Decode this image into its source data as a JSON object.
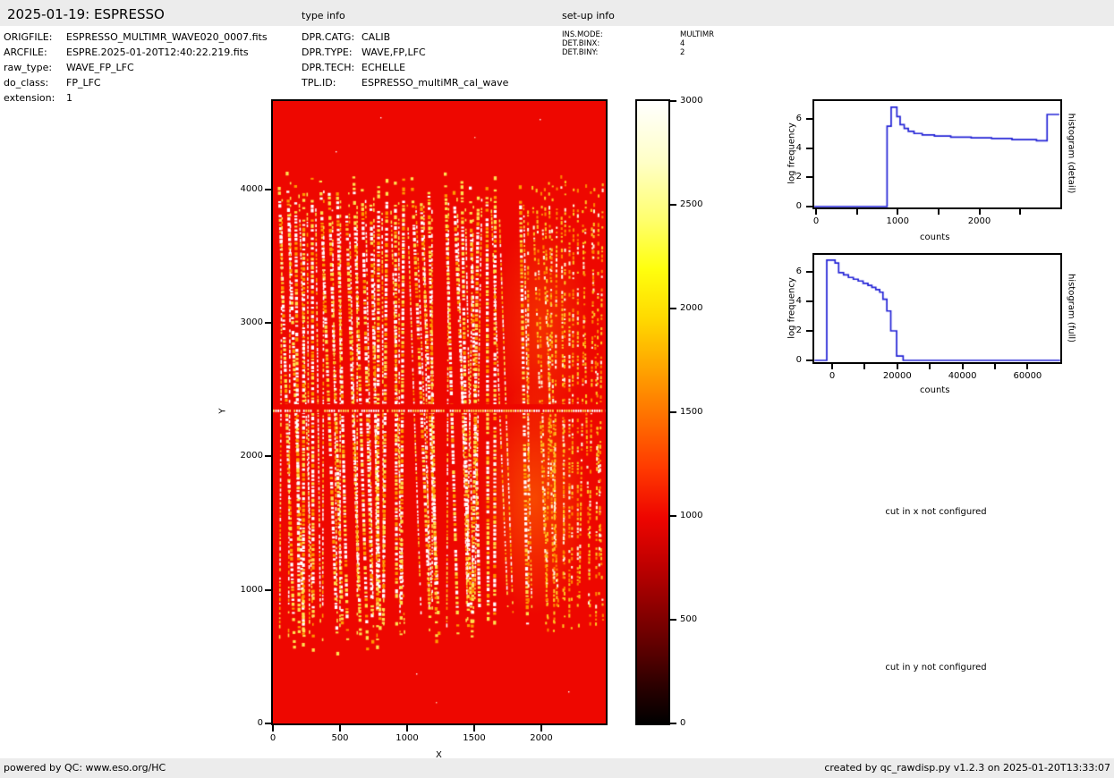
{
  "header": {
    "title": "2025-01-19: ESPRESSO",
    "type_info_label": "type info",
    "setup_info_label": "set-up info"
  },
  "metadata": {
    "rows": [
      {
        "label": "ORIGFILE:",
        "value": "ESPRESSO_MULTIMR_WAVE020_0007.fits"
      },
      {
        "label": "ARCFILE:",
        "value": "ESPRE.2025-01-20T12:40:22.219.fits"
      },
      {
        "label": "raw_type:",
        "value": "WAVE_FP_LFC"
      },
      {
        "label": "do_class:",
        "value": "FP_LFC"
      },
      {
        "label": "extension:",
        "value": "1"
      }
    ]
  },
  "type_info": {
    "rows": [
      {
        "label": "DPR.CATG:",
        "value": "CALIB"
      },
      {
        "label": "DPR.TYPE:",
        "value": "WAVE,FP,LFC"
      },
      {
        "label": "DPR.TECH:",
        "value": "ECHELLE"
      },
      {
        "label": "TPL.ID:",
        "value": "ESPRESSO_multiMR_cal_wave"
      }
    ]
  },
  "setup_info": {
    "rows": [
      {
        "label": "INS.MODE:",
        "value": "MULTIMR"
      },
      {
        "label": "DET.BINX:",
        "value": "4"
      },
      {
        "label": "DET.BINY:",
        "value": "2"
      }
    ]
  },
  "messages": {
    "cut_x": "cut in x not configured",
    "cut_y": "cut in y not configured"
  },
  "footer": {
    "left": "powered by QC: www.eso.org/HC",
    "right": "created by qc_rawdisp.py v1.2.3 on 2025-01-20T13:33:07"
  },
  "colors": {
    "band_gray": "#ececec",
    "histogram_line": "#2323d6",
    "image_red": "#ee0700",
    "stripe_white": "#ffffff",
    "stripe_yellow": "#ffe14e",
    "stripe_orange": "#ff9b00",
    "axis_black": "#000000"
  },
  "chart_data": [
    {
      "type": "heatmap",
      "name": "raw_detector_frame",
      "xlabel": "X",
      "ylabel": "Y",
      "xlim": [
        0,
        2480
      ],
      "ylim": [
        0,
        4658
      ],
      "xticks": [
        0,
        500,
        1000,
        1500,
        2000
      ],
      "yticks": [
        0,
        1000,
        2000,
        3000,
        4000
      ],
      "colorbar": {
        "colormap": "hot",
        "vmin": 0,
        "vmax": 3000,
        "ticks": [
          0,
          500,
          1000,
          1500,
          2000,
          2500,
          3000
        ]
      },
      "features": {
        "background_counts": 1000,
        "content": "vertical echelle-order columns of dotted FP/LFC emission lines, saturated white/yellow on red background",
        "stripe_region_y": [
          500,
          4140
        ],
        "bright_horizontal_row_y": 2320,
        "dense_zone_x": [
          1900,
          2480
        ],
        "amplifier_gap_x": [
          1690,
          1780
        ]
      }
    },
    {
      "type": "line",
      "name": "histogram_detail",
      "xlabel": "counts",
      "ylabel": "log frequency",
      "right_label": "histogram (detail)",
      "xlim": [
        -22,
        2980
      ],
      "ylim": [
        0,
        7.2
      ],
      "xticks_all": [
        0,
        500,
        1000,
        1500,
        2000,
        2500
      ],
      "xticks_labeled": [
        0,
        1000,
        2000
      ],
      "yticks": [
        0,
        2,
        4,
        6
      ],
      "steps": [
        [
          -20,
          0
        ],
        [
          870,
          5.5
        ],
        [
          920,
          6.8
        ],
        [
          990,
          6.15
        ],
        [
          1030,
          5.6
        ],
        [
          1080,
          5.35
        ],
        [
          1130,
          5.15
        ],
        [
          1200,
          5.0
        ],
        [
          1300,
          4.9
        ],
        [
          1450,
          4.82
        ],
        [
          1650,
          4.75
        ],
        [
          1900,
          4.7
        ],
        [
          2150,
          4.65
        ],
        [
          2400,
          4.58
        ],
        [
          2700,
          4.5
        ],
        [
          2830,
          6.3
        ]
      ],
      "x_end": 2980
    },
    {
      "type": "line",
      "name": "histogram_full",
      "xlabel": "counts",
      "ylabel": "log frequency",
      "right_label": "histogram (full)",
      "xlim": [
        -5500,
        70000
      ],
      "ylim": [
        0,
        7.15
      ],
      "xticks_all": [
        0,
        10000,
        20000,
        30000,
        40000,
        50000,
        60000
      ],
      "xticks_labeled": [
        0,
        20000,
        40000,
        60000
      ],
      "yticks": [
        0,
        2,
        4,
        6
      ],
      "steps": [
        [
          -5400,
          0
        ],
        [
          -1650,
          6.8
        ],
        [
          900,
          6.6
        ],
        [
          2000,
          5.95
        ],
        [
          3500,
          5.8
        ],
        [
          5000,
          5.62
        ],
        [
          6500,
          5.5
        ],
        [
          8000,
          5.38
        ],
        [
          9500,
          5.22
        ],
        [
          11000,
          5.08
        ],
        [
          12200,
          4.95
        ],
        [
          13400,
          4.8
        ],
        [
          14600,
          4.62
        ],
        [
          15600,
          4.15
        ],
        [
          16800,
          3.35
        ],
        [
          18000,
          2.0
        ],
        [
          19800,
          0.3
        ],
        [
          21800,
          0.0
        ]
      ],
      "x_end": 70000
    }
  ]
}
